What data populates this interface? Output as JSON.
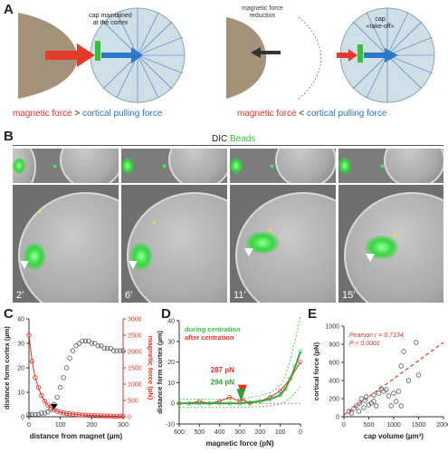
{
  "panels": {
    "A": "A",
    "B": "B",
    "C": "C",
    "D": "D",
    "E": "E"
  },
  "panelA": {
    "left_note": "cap maintained\nat the cortex",
    "middle_note": "magnetic force\nreduction",
    "right_note": "cap\n«take-off»",
    "caption_left": {
      "magnetic": "magnetic force",
      "op": ">",
      "cortical": "cortical pulling force"
    },
    "caption_right": {
      "magnetic": "magnetic force",
      "op": "<",
      "cortical": "cortical pulling force"
    },
    "colors": {
      "magnetic": "#e8322a",
      "cortical": "#2a73c9",
      "beads": "#39c43f"
    }
  },
  "panelB": {
    "header_dic": "DIC",
    "header_beads": "Beads",
    "times": [
      "2'",
      "6'",
      "11'",
      "15'"
    ]
  },
  "panelC": {
    "xlabel": "distance from magnet (µm)",
    "ylabel_left": "distance form cortex (µm)",
    "ylabel_right": "magnetic force (pN)",
    "x_ticks": [
      "0",
      "100",
      "200",
      "300"
    ],
    "y_left_ticks": [
      "0",
      "10",
      "20",
      "30",
      "40"
    ],
    "y_right_ticks": [
      "0",
      "500",
      "1000",
      "1500",
      "2000",
      "2500",
      "3000"
    ]
  },
  "panelD": {
    "xlabel": "magnetic force (pN)",
    "ylabel": "distance form cortex (µm)",
    "legend_during": "during centration",
    "legend_after": "after centration",
    "annot1": "287 pN",
    "annot2": "294 pN",
    "x_ticks": [
      "600",
      "500",
      "400",
      "300",
      "200",
      "100",
      "0"
    ],
    "y_ticks": [
      "-10",
      "0",
      "10",
      "20",
      "30",
      "40"
    ]
  },
  "panelE": {
    "xlabel": "cap volume (µm³)",
    "ylabel": "cortical force (pN)",
    "stat1": "Pearson r = 0.7134",
    "stat2": "P < 0.0001",
    "x_ticks": [
      "0",
      "500",
      "1000",
      "1500",
      "2000"
    ],
    "y_ticks": [
      "0",
      "200",
      "400",
      "600",
      "800",
      "1000"
    ]
  },
  "chart_data": [
    {
      "type": "scatter",
      "panel": "C",
      "xlabel": "distance from magnet (µm)",
      "ylabel": "distance form cortex (µm)",
      "xlim": [
        0,
        300
      ],
      "ylim": [
        0,
        40
      ],
      "series": [
        {
          "name": "distance form cortex",
          "color": "#555555",
          "x": [
            0,
            10,
            20,
            30,
            40,
            50,
            60,
            70,
            80,
            90,
            100,
            110,
            120,
            130,
            140,
            150,
            160,
            170,
            180,
            190,
            200,
            210,
            220,
            230,
            240,
            250,
            260,
            270,
            280,
            290,
            300
          ],
          "y": [
            1,
            1,
            1,
            1,
            1.5,
            1.5,
            2,
            3,
            5,
            8,
            12,
            16,
            20,
            24,
            27,
            29,
            30,
            31,
            31,
            31,
            30,
            30,
            29,
            29,
            28,
            28,
            28,
            27,
            27,
            27,
            27
          ]
        },
        {
          "name": "magnetic force",
          "color": "#e8322a",
          "axis": "right",
          "ylim": [
            0,
            3000
          ],
          "x": [
            0,
            10,
            20,
            30,
            40,
            50,
            60,
            70,
            80,
            90,
            100,
            110,
            120,
            130,
            140,
            150,
            160,
            170,
            180,
            190,
            200,
            210,
            220,
            230,
            240,
            250,
            260,
            270,
            280,
            290,
            300
          ],
          "y": [
            2500,
            1700,
            1200,
            900,
            650,
            480,
            360,
            280,
            220,
            170,
            140,
            120,
            100,
            90,
            80,
            70,
            60,
            55,
            50,
            45,
            40,
            35,
            30,
            28,
            26,
            24,
            22,
            20,
            20,
            18,
            18
          ]
        }
      ]
    },
    {
      "type": "line",
      "panel": "D",
      "xlabel": "magnetic force (pN)",
      "ylabel": "distance form cortex (µm)",
      "xlim": [
        600,
        0
      ],
      "ylim": [
        -10,
        40
      ],
      "series": [
        {
          "name": "during centration",
          "color": "#39c43f",
          "x": [
            600,
            550,
            500,
            450,
            400,
            350,
            300,
            250,
            200,
            150,
            100,
            75,
            50,
            25,
            0
          ],
          "y": [
            0,
            0,
            0,
            0,
            0,
            0,
            0,
            0.5,
            1,
            2,
            4,
            7,
            12,
            18,
            25
          ]
        },
        {
          "name": "after centration",
          "color": "#e8322a",
          "x": [
            600,
            550,
            500,
            450,
            400,
            350,
            300,
            287,
            250,
            200,
            150,
            100,
            50,
            0
          ],
          "y": [
            0,
            0,
            1,
            0,
            1,
            3,
            1,
            2,
            0,
            1,
            3,
            6,
            12,
            20
          ]
        }
      ]
    },
    {
      "type": "scatter",
      "panel": "E",
      "xlabel": "cap volume (µm³)",
      "ylabel": "cortical force (pN)",
      "xlim": [
        0,
        2000
      ],
      "ylim": [
        0,
        1000
      ],
      "points": [
        [
          100,
          60
        ],
        [
          150,
          40
        ],
        [
          200,
          90
        ],
        [
          250,
          120
        ],
        [
          300,
          60
        ],
        [
          320,
          150
        ],
        [
          400,
          100
        ],
        [
          420,
          180
        ],
        [
          450,
          220
        ],
        [
          500,
          130
        ],
        [
          550,
          150
        ],
        [
          600,
          170
        ],
        [
          650,
          120
        ],
        [
          700,
          260
        ],
        [
          750,
          310
        ],
        [
          800,
          280
        ],
        [
          850,
          300
        ],
        [
          900,
          230
        ],
        [
          950,
          120
        ],
        [
          1000,
          260
        ],
        [
          1050,
          170
        ],
        [
          1100,
          280
        ],
        [
          1150,
          560
        ],
        [
          1200,
          720
        ],
        [
          1450,
          820
        ],
        [
          1500,
          460
        ],
        [
          1150,
          120
        ],
        [
          1300,
          400
        ],
        [
          350,
          200
        ],
        [
          600,
          240
        ]
      ],
      "fit": {
        "x": [
          0,
          2000
        ],
        "y": [
          20,
          820
        ],
        "color": "#e8322a"
      }
    }
  ]
}
